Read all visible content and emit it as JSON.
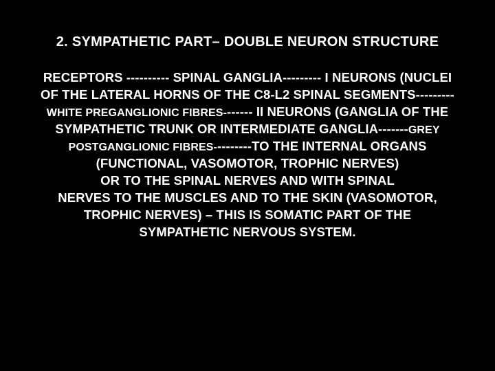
{
  "title": "2. SYMPATHETIC PART– DOUBLE NEURON STRUCTURE",
  "line1a": "RECEPTORS ---------- SPINAL GANGLIA--------- І NEURONS (NUCLEI",
  "line2": "OF THE LATERAL HORNS OF THE C8-L2 SPINAL SEGMENTS---------",
  "line3_small": "WHITE  PREGANGLIONIC FIBRES-",
  "line3_big": "------ ІІ NEURONS (GANGLIA OF THE",
  "line4_big": "SYMPATHETIC TRUNK OR INTERMEDIATE GANGLIA-------",
  "line4_small": "GREY",
  "line5_small": "POSTGANGLIONIC FIBRES-",
  "line5_big": "--------TO THE INTERNAL ORGANS",
  "line6": "(FUNCTIONAL, VASOMOTOR, TROPHIC NERVES)",
  "line7": "OR TO THE SPINAL NERVES AND WITH SPINAL",
  "line8": "NERVES TO THE MUSCLES AND TO THE SKIN (VASOMOTOR,",
  "line9": "TROPHIC NERVES) – THIS IS SOMATIC PART OF THE",
  "line10": "SYMPATHETIC NERVOUS SYSTEM."
}
